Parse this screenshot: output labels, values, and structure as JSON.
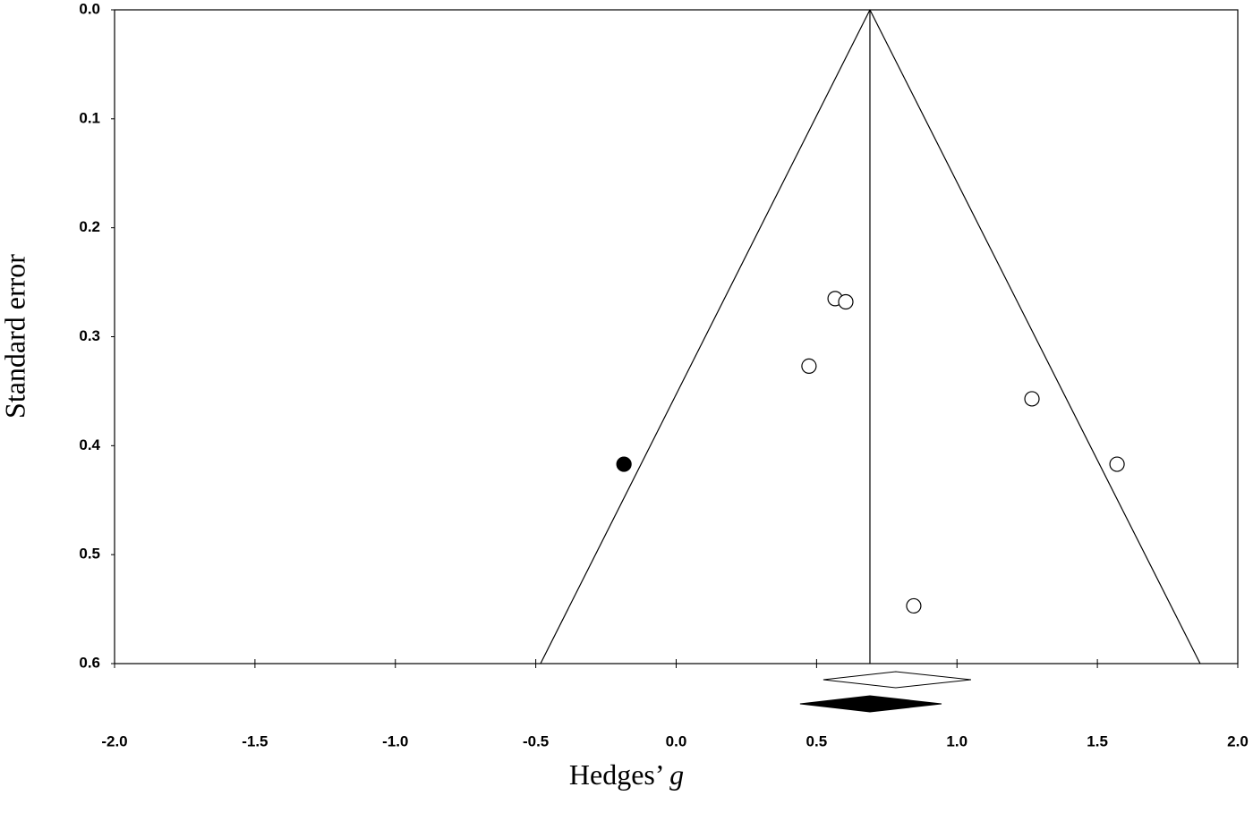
{
  "chart_data": {
    "type": "scatter",
    "xlabel": "Hedges’",
    "xlabel_variable": "g",
    "ylabel": "Standard error",
    "xlim": [
      -2.0,
      2.0
    ],
    "ylim": [
      0.0,
      0.6
    ],
    "y_inverted": true,
    "xticks": [
      {
        "value": -2.0,
        "label": "-2.0"
      },
      {
        "value": -1.5,
        "label": "-1.5"
      },
      {
        "value": -1.0,
        "label": "-1.0"
      },
      {
        "value": -0.5,
        "label": "-0.5"
      },
      {
        "value": 0.0,
        "label": "0.0"
      },
      {
        "value": 0.5,
        "label": "0.5"
      },
      {
        "value": 1.0,
        "label": "1.0"
      },
      {
        "value": 1.5,
        "label": "1.5"
      },
      {
        "value": 2.0,
        "label": "2.0"
      }
    ],
    "yticks": [
      {
        "value": 0.0,
        "label": "0.0"
      },
      0.1,
      0.2,
      0.3,
      0.4,
      0.5,
      {
        "value": 0.6,
        "label": "0.6"
      }
    ],
    "series": [
      {
        "color": "#ffffff",
        "x": [
          0.566,
          0.604,
          0.473,
          1.267,
          1.57,
          0.846
        ],
        "values": [
          0.265,
          0.268,
          0.327,
          0.357,
          0.417,
          0.547
        ]
      },
      {
        "color": "#000000",
        "x": [
          -0.186
        ],
        "values": [
          0.417
        ]
      }
    ],
    "funnel": {
      "apex": 0.69,
      "left_at_max": -0.483,
      "right_at_max": 1.866
    },
    "summaries": [
      {
        "color": "#ffffff",
        "point": 0.782,
        "lower": 0.524,
        "upper": 1.05
      },
      {
        "color": "#000000",
        "point": 0.69,
        "lower": 0.441,
        "upper": 0.945
      }
    ]
  }
}
